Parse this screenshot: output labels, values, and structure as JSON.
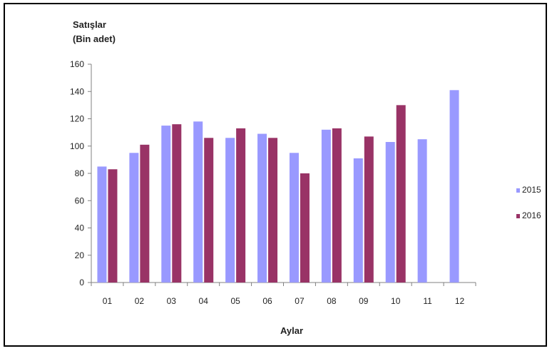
{
  "chart_data": {
    "type": "bar",
    "ylabel_line1": "Satışlar",
    "ylabel_line2": "(Bin adet)",
    "xlabel": "Aylar",
    "categories": [
      "01",
      "02",
      "03",
      "04",
      "05",
      "06",
      "07",
      "08",
      "09",
      "10",
      "11",
      "12"
    ],
    "ylim": [
      0,
      160
    ],
    "yticks": [
      0,
      20,
      40,
      60,
      80,
      100,
      120,
      140,
      160
    ],
    "grid": false,
    "legend_position": "right",
    "series": [
      {
        "name": "2015",
        "color": "#9999ff",
        "values": [
          85,
          95,
          115,
          118,
          106,
          109,
          95,
          112,
          91,
          103,
          105,
          141
        ]
      },
      {
        "name": "2016",
        "color": "#993366",
        "values": [
          83,
          101,
          116,
          106,
          113,
          106,
          80,
          113,
          107,
          130,
          null,
          null
        ]
      }
    ]
  }
}
